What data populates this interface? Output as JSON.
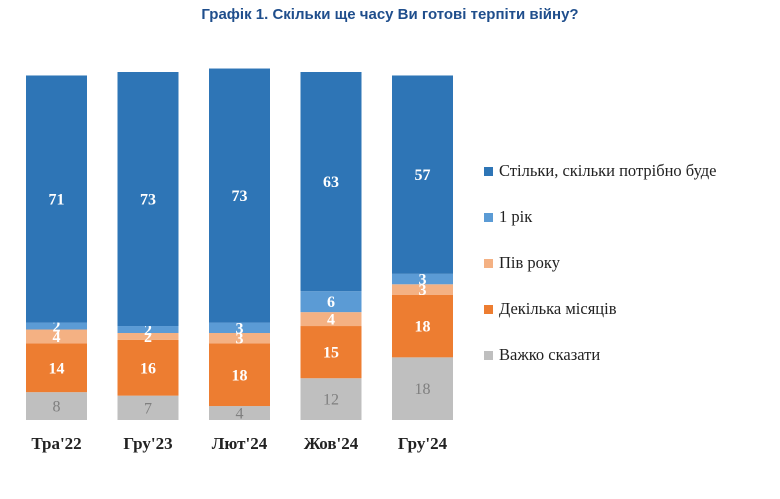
{
  "chart_data": {
    "type": "bar",
    "stacked": true,
    "title": "Графік 1. Скільки ще часу Ви готові терпіти війну?",
    "categories": [
      "Тра'22",
      "Гру'23",
      "Лют'24",
      "Жов'24",
      "Гру'24"
    ],
    "series": [
      {
        "name": "Важко сказати",
        "color": "#bfbfbf",
        "label_color": "#7f7f7f",
        "values": [
          8,
          7,
          4,
          12,
          18
        ]
      },
      {
        "name": "Декілька місяців",
        "color": "#ed7d31",
        "label_color": "#ffffff",
        "values": [
          14,
          16,
          18,
          15,
          18
        ]
      },
      {
        "name": "Пів року",
        "color": "#f4b183",
        "label_color": "#ffffff",
        "values": [
          4,
          2,
          3,
          4,
          3
        ]
      },
      {
        "name": "1 рік",
        "color": "#5b9bd5",
        "label_color": "#ffffff",
        "values": [
          2,
          2,
          3,
          6,
          3
        ]
      },
      {
        "name": "Стільки, скільки потрібно буде",
        "color": "#2e75b6",
        "label_color": "#ffffff",
        "values": [
          71,
          73,
          73,
          63,
          57
        ]
      }
    ],
    "legend_order": [
      4,
      3,
      2,
      1,
      0
    ],
    "legend_position": "right",
    "ylim": [
      0,
      100
    ],
    "grid": false
  }
}
